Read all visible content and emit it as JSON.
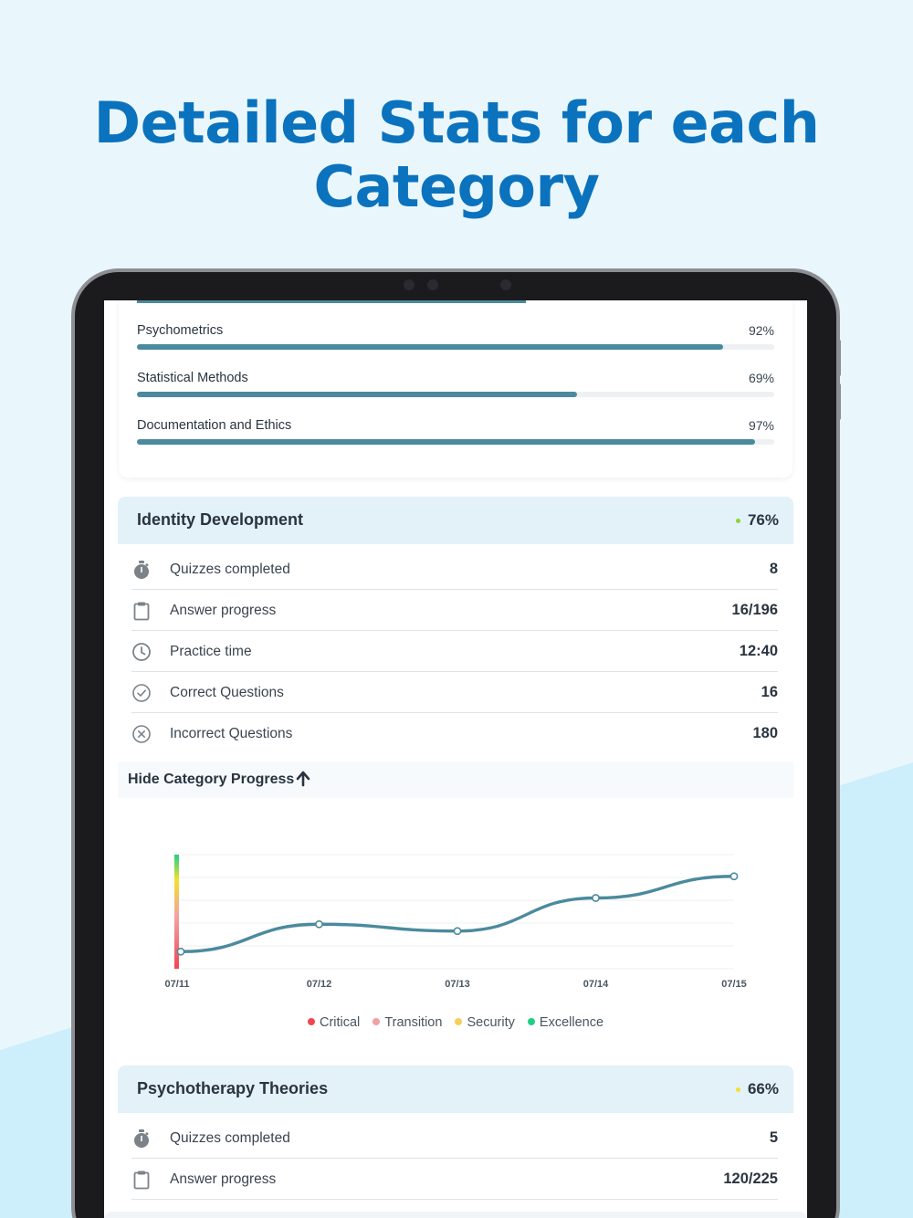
{
  "headline": {
    "line1": "Detailed Stats for each",
    "line2": "Category"
  },
  "top_card": {
    "rows": [
      {
        "label": "Psychometrics",
        "percent_text": "92%",
        "percent": 92
      },
      {
        "label": "Statistical Methods",
        "percent_text": "69%",
        "percent": 69
      },
      {
        "label": "Documentation and Ethics",
        "percent_text": "97%",
        "percent": 97
      }
    ]
  },
  "category1": {
    "title": "Identity Development",
    "percent": "76%",
    "dot_color": "#8bd62a",
    "stats": [
      {
        "icon": "stopwatch-icon",
        "label": "Quizzes completed",
        "value": "8"
      },
      {
        "icon": "clipboard-icon",
        "label": "Answer progress",
        "value": "16/196"
      },
      {
        "icon": "clock-icon",
        "label": "Practice time",
        "value": "12:40"
      },
      {
        "icon": "check-circle-icon",
        "label": "Correct Questions",
        "value": "16"
      },
      {
        "icon": "x-circle-icon",
        "label": "Incorrect Questions",
        "value": "180"
      }
    ],
    "toggle_label": "Hide Category Progress"
  },
  "chart_data": {
    "type": "line",
    "categories": [
      "07/11",
      "07/12",
      "07/13",
      "07/14",
      "07/15"
    ],
    "values": [
      15,
      39,
      33,
      62,
      81
    ],
    "ylim": [
      0,
      100
    ],
    "grid": true,
    "legend": [
      {
        "name": "Critical",
        "color": "#f04650"
      },
      {
        "name": "Transition",
        "color": "#f3a0a4"
      },
      {
        "name": "Security",
        "color": "#f6cf5a"
      },
      {
        "name": "Excellence",
        "color": "#1fcf86"
      }
    ],
    "line_color": "#4b8a9e"
  },
  "category2": {
    "title": "Psychotherapy Theories",
    "percent": "66%",
    "dot_color": "#f2e12e",
    "stats": [
      {
        "icon": "stopwatch-icon",
        "label": "Quizzes completed",
        "value": "5"
      },
      {
        "icon": "clipboard-icon",
        "label": "Answer progress",
        "value": "120/225"
      }
    ]
  }
}
